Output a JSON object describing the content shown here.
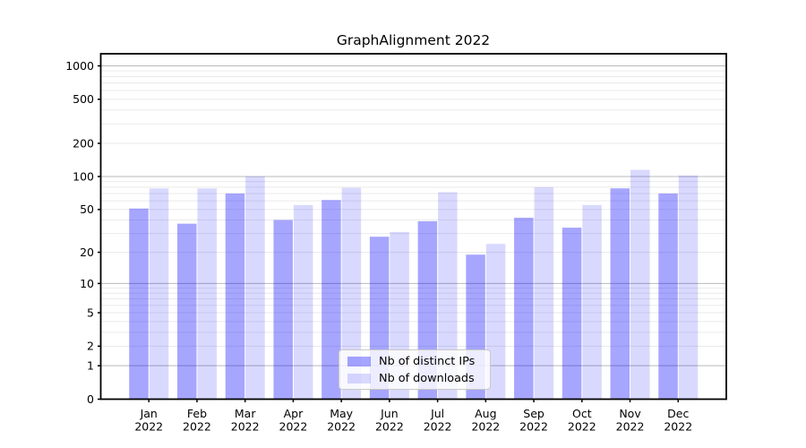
{
  "figure": {
    "title": "GraphAlignment 2022"
  },
  "legend": {
    "items": [
      {
        "label": "Nb of distinct IPs",
        "color": "rgba(0,0,255,0.35)"
      },
      {
        "label": "Nb of downloads",
        "color": "rgba(0,0,255,0.15)"
      }
    ]
  },
  "chart_data": {
    "type": "bar",
    "title": "GraphAlignment 2022",
    "categories": [
      "Jan 2022",
      "Feb 2022",
      "Mar 2022",
      "Apr 2022",
      "May 2022",
      "Jun 2022",
      "Jul 2022",
      "Aug 2022",
      "Sep 2022",
      "Oct 2022",
      "Nov 2022",
      "Dec 2022"
    ],
    "month_line1": [
      "Jan",
      "Feb",
      "Mar",
      "Apr",
      "May",
      "Jun",
      "Jul",
      "Aug",
      "Sep",
      "Oct",
      "Nov",
      "Dec"
    ],
    "month_line2": "2022",
    "series": [
      {
        "name": "Nb of distinct IPs",
        "color": "rgba(0,0,255,0.35)",
        "values": [
          51,
          37,
          70,
          40,
          61,
          28,
          39,
          19,
          42,
          34,
          78,
          70
        ]
      },
      {
        "name": "Nb of downloads",
        "color": "rgba(0,0,255,0.15)",
        "values": [
          78,
          78,
          100,
          55,
          79,
          31,
          72,
          24,
          80,
          55,
          115,
          102
        ]
      }
    ],
    "xlabel": "",
    "ylabel": "",
    "y_scale": "symlog",
    "y_ticks": [
      0,
      1,
      2,
      5,
      10,
      20,
      50,
      100,
      200,
      500,
      1000
    ],
    "y_major_gridlines": [
      1,
      10,
      100,
      1000
    ],
    "ylim": [
      0,
      1280
    ],
    "grid": true,
    "legend_position": "lower center",
    "colors": {
      "major_grid": "#b9b9b9",
      "minor_grid": "#eaeaea",
      "axis": "#000000",
      "text": "#000000",
      "background": "#ffffff"
    }
  }
}
